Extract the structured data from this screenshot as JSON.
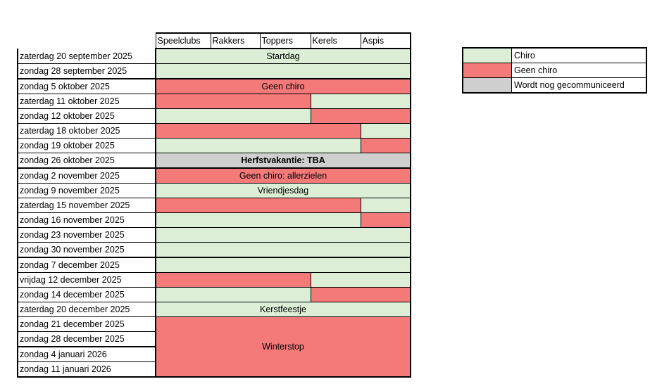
{
  "groups": [
    "Speelclubs",
    "Rakkers",
    "Toppers",
    "Kerels",
    "Aspis"
  ],
  "colors": {
    "green": "#dcefd6",
    "red": "#f47a7a",
    "grey": "#cfcfcf"
  },
  "rows": [
    {
      "date": "zaterdag 20 september 2025",
      "cells": [
        {
          "span": 5,
          "color": "green",
          "text": "Startdag"
        }
      ],
      "month_start": false
    },
    {
      "date": "zondag 28 september 2025",
      "cells": [
        {
          "span": 5,
          "color": "green",
          "text": ""
        }
      ]
    },
    {
      "date": "zondag 5 oktober 2025",
      "cells": [
        {
          "span": 5,
          "color": "red",
          "text": "Geen chiro"
        }
      ],
      "month_start": true
    },
    {
      "date": "zaterdag 11 oktober 2025",
      "cells": [
        {
          "span": 3,
          "color": "red",
          "text": ""
        },
        {
          "span": 2,
          "color": "green",
          "text": ""
        }
      ]
    },
    {
      "date": "zondag 12 oktober 2025",
      "cells": [
        {
          "span": 3,
          "color": "green",
          "text": ""
        },
        {
          "span": 2,
          "color": "red",
          "text": ""
        }
      ]
    },
    {
      "date": "zaterdag 18 oktober 2025",
      "cells": [
        {
          "span": 4,
          "color": "red",
          "text": ""
        },
        {
          "span": 1,
          "color": "green",
          "text": ""
        }
      ]
    },
    {
      "date": "zondag 19 oktober 2025",
      "cells": [
        {
          "span": 4,
          "color": "green",
          "text": ""
        },
        {
          "span": 1,
          "color": "red",
          "text": ""
        }
      ]
    },
    {
      "date": "zondag 26 oktober 2025",
      "cells": [
        {
          "span": 5,
          "color": "grey",
          "text": "Herfstvakantie: TBA",
          "bold": true
        }
      ]
    },
    {
      "date": "zondag 2 november 2025",
      "cells": [
        {
          "span": 5,
          "color": "red",
          "text": "Geen chiro: allerzielen"
        }
      ],
      "month_start": true
    },
    {
      "date": "zondag 9 november 2025",
      "cells": [
        {
          "span": 5,
          "color": "green",
          "text": "Vriendjesdag"
        }
      ]
    },
    {
      "date": "zaterdag 15 november 2025",
      "cells": [
        {
          "span": 4,
          "color": "red",
          "text": ""
        },
        {
          "span": 1,
          "color": "green",
          "text": ""
        }
      ]
    },
    {
      "date": "zondag 16 november 2025",
      "cells": [
        {
          "span": 4,
          "color": "green",
          "text": ""
        },
        {
          "span": 1,
          "color": "red",
          "text": ""
        }
      ]
    },
    {
      "date": "zondag 23 november 2025",
      "cells": [
        {
          "span": 5,
          "color": "green",
          "text": ""
        }
      ]
    },
    {
      "date": "zondag 30 november 2025",
      "cells": [
        {
          "span": 5,
          "color": "green",
          "text": ""
        }
      ]
    },
    {
      "date": "zondag 7 december 2025",
      "cells": [
        {
          "span": 5,
          "color": "green",
          "text": ""
        }
      ],
      "month_start": true
    },
    {
      "date": "vrijdag 12 december 2025",
      "cells": [
        {
          "span": 3,
          "color": "red",
          "text": ""
        },
        {
          "span": 2,
          "color": "green",
          "text": ""
        }
      ]
    },
    {
      "date": "zondag 14 december 2025",
      "cells": [
        {
          "span": 3,
          "color": "green",
          "text": ""
        },
        {
          "span": 2,
          "color": "red",
          "text": ""
        }
      ]
    },
    {
      "date": "zaterdag 20 december 2025",
      "cells": [
        {
          "span": 5,
          "color": "green",
          "text": "Kerstfeestje"
        }
      ]
    },
    {
      "date": "zondag 21 december 2025",
      "cells": [
        {
          "span": 5,
          "rowspan": 4,
          "color": "red",
          "text": "Winterstop"
        }
      ]
    },
    {
      "date": "zondag 28 december 2025",
      "cells": []
    },
    {
      "date": "zondag 4 januari 2026",
      "cells": [],
      "month_start": true
    },
    {
      "date": "zondag 11 januari 2026",
      "cells": []
    }
  ],
  "legend": [
    {
      "color": "green",
      "label": "Chiro"
    },
    {
      "color": "red",
      "label": "Geen chiro"
    },
    {
      "color": "grey",
      "label": "Wordt nog gecommuniceerd"
    }
  ]
}
